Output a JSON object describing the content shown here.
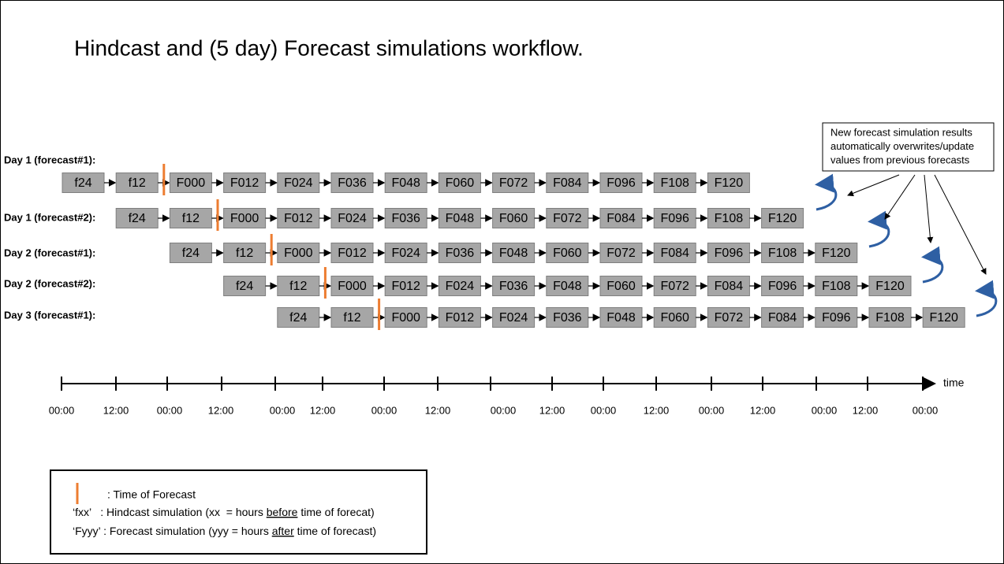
{
  "title": "Hindcast and (5 day) Forecast simulations workflow.",
  "rows": [
    {
      "label": "Day 1 (forecast#1):",
      "boxes": [
        "f24",
        "f12",
        "F000",
        "F012",
        "F024",
        "F036",
        "F048",
        "F060",
        "F072",
        "F084",
        "F096",
        "F108",
        "F120"
      ]
    },
    {
      "label": "Day 1 (forecast#2):",
      "boxes": [
        "f24",
        "f12",
        "F000",
        "F012",
        "F024",
        "F036",
        "F048",
        "F060",
        "F072",
        "F084",
        "F096",
        "F108",
        "F120"
      ]
    },
    {
      "label": "Day 2 (forecast#1):",
      "boxes": [
        "f24",
        "f12",
        "F000",
        "F012",
        "F024",
        "F036",
        "F048",
        "F060",
        "F072",
        "F084",
        "F096",
        "F108",
        "F120"
      ]
    },
    {
      "label": "Day 2 (forecast#2):",
      "boxes": [
        "f24",
        "f12",
        "F000",
        "F012",
        "F024",
        "F036",
        "F048",
        "F060",
        "F072",
        "F084",
        "F096",
        "F108",
        "F120"
      ]
    },
    {
      "label": "Day 3 (forecast#1):",
      "boxes": [
        "f24",
        "f12",
        "F000",
        "F012",
        "F024",
        "F036",
        "F048",
        "F060",
        "F072",
        "F084",
        "F096",
        "F108",
        "F120"
      ]
    }
  ],
  "note": {
    "lines": [
      "New forecast simulation results",
      "automatically overwrites/update",
      "values from previous forecasts"
    ]
  },
  "timeline": {
    "labels": [
      "00:00",
      "12:00",
      "00:00",
      "12:00",
      "00:00",
      "12:00",
      "00:00",
      "12:00",
      "00:00",
      "12:00",
      "00:00",
      "12:00",
      "00:00",
      "12:00",
      "00:00",
      "12:00",
      "00:00"
    ],
    "axis_label": "time"
  },
  "legend": {
    "forecast_time": ": Time of Forecast",
    "hindcast": {
      "key": "‘fxx’",
      "text_before": "   : Hindcast simulation (xx  = hours ",
      "underlined": "before",
      "text_after": " time of forecat)"
    },
    "forecast": {
      "key": "‘Fyyy’",
      "text_before": " : Forecast simulation (yyy = hours ",
      "underlined": "after",
      "text_after": " time of forecast)"
    }
  }
}
